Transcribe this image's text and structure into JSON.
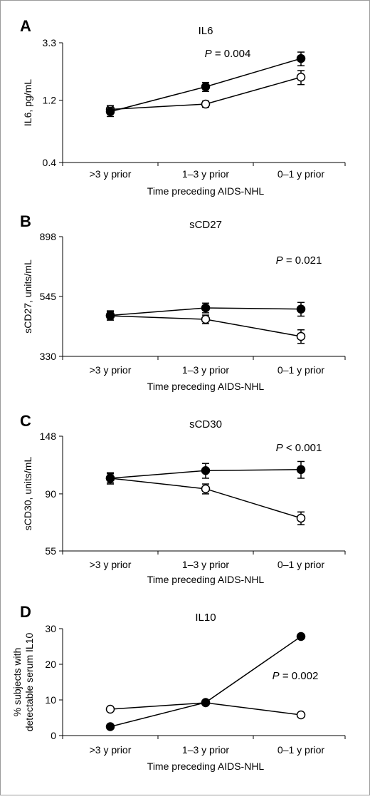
{
  "chart_data": [
    {
      "panel": "A",
      "type": "line",
      "title": "IL6",
      "ylabel": "IL6, pg/mL",
      "xlabel": "Time preceding AIDS-NHL",
      "categories": [
        ">3 y prior",
        "1–3 y prior",
        "0–1 y prior"
      ],
      "y_scale": "log",
      "yticks": [
        "0.4",
        "1.2",
        "3.3"
      ],
      "ylim": [
        0.4,
        3.3
      ],
      "annotation": {
        "p_label": "P",
        "p_rest": " = 0.004"
      },
      "series": [
        {
          "marker": "filled",
          "values": [
            0.98,
            1.52,
            2.5
          ],
          "err": [
            0.08,
            0.12,
            0.3
          ]
        },
        {
          "marker": "open",
          "values": [
            1.02,
            1.12,
            1.8
          ],
          "err": [
            0.07,
            0.06,
            0.22
          ]
        }
      ]
    },
    {
      "panel": "B",
      "type": "line",
      "title": "sCD27",
      "ylabel": "sCD27, units/mL",
      "xlabel": "Time preceding AIDS-NHL",
      "categories": [
        ">3 y prior",
        "1–3 y prior",
        "0–1 y prior"
      ],
      "y_scale": "log",
      "yticks": [
        "330",
        "545",
        "898"
      ],
      "ylim": [
        330,
        898
      ],
      "annotation": {
        "p_label": "P",
        "p_rest": " = 0.021"
      },
      "series": [
        {
          "marker": "filled",
          "values": [
            465,
            495,
            490
          ],
          "err": [
            18,
            20,
            28
          ]
        },
        {
          "marker": "open",
          "values": [
            463,
            450,
            390
          ],
          "err": [
            16,
            16,
            22
          ]
        }
      ]
    },
    {
      "panel": "C",
      "type": "line",
      "title": "sCD30",
      "ylabel": "sCD30, units/mL",
      "xlabel": "Time preceding AIDS-NHL",
      "categories": [
        ">3 y prior",
        "1–3 y prior",
        "0–1 y prior"
      ],
      "y_scale": "log",
      "yticks": [
        "55",
        "90",
        "148"
      ],
      "ylim": [
        55,
        148
      ],
      "annotation": {
        "p_label": "P",
        "p_rest": " < 0.001"
      },
      "series": [
        {
          "marker": "filled",
          "values": [
            103,
            110,
            111
          ],
          "err": [
            5,
            7,
            8
          ]
        },
        {
          "marker": "open",
          "values": [
            103,
            94,
            73
          ],
          "err": [
            4,
            4,
            4
          ]
        }
      ]
    },
    {
      "panel": "D",
      "type": "line",
      "title": "IL10",
      "ylabel": "% subjects with detectable serum IL10",
      "xlabel": "Time preceding AIDS-NHL",
      "categories": [
        ">3 y prior",
        "1–3 y prior",
        "0–1 y prior"
      ],
      "y_scale": "linear",
      "yticks": [
        "0",
        "10",
        "20",
        "30"
      ],
      "ylim": [
        0,
        30
      ],
      "annotation": {
        "p_label": "P",
        "p_rest": " = 0.002"
      },
      "series": [
        {
          "marker": "filled",
          "values": [
            2.5,
            9.3,
            27.8
          ],
          "err": [
            0,
            0,
            0
          ]
        },
        {
          "marker": "open",
          "values": [
            7.4,
            9.2,
            5.8
          ],
          "err": [
            0,
            0,
            0
          ]
        }
      ]
    }
  ]
}
